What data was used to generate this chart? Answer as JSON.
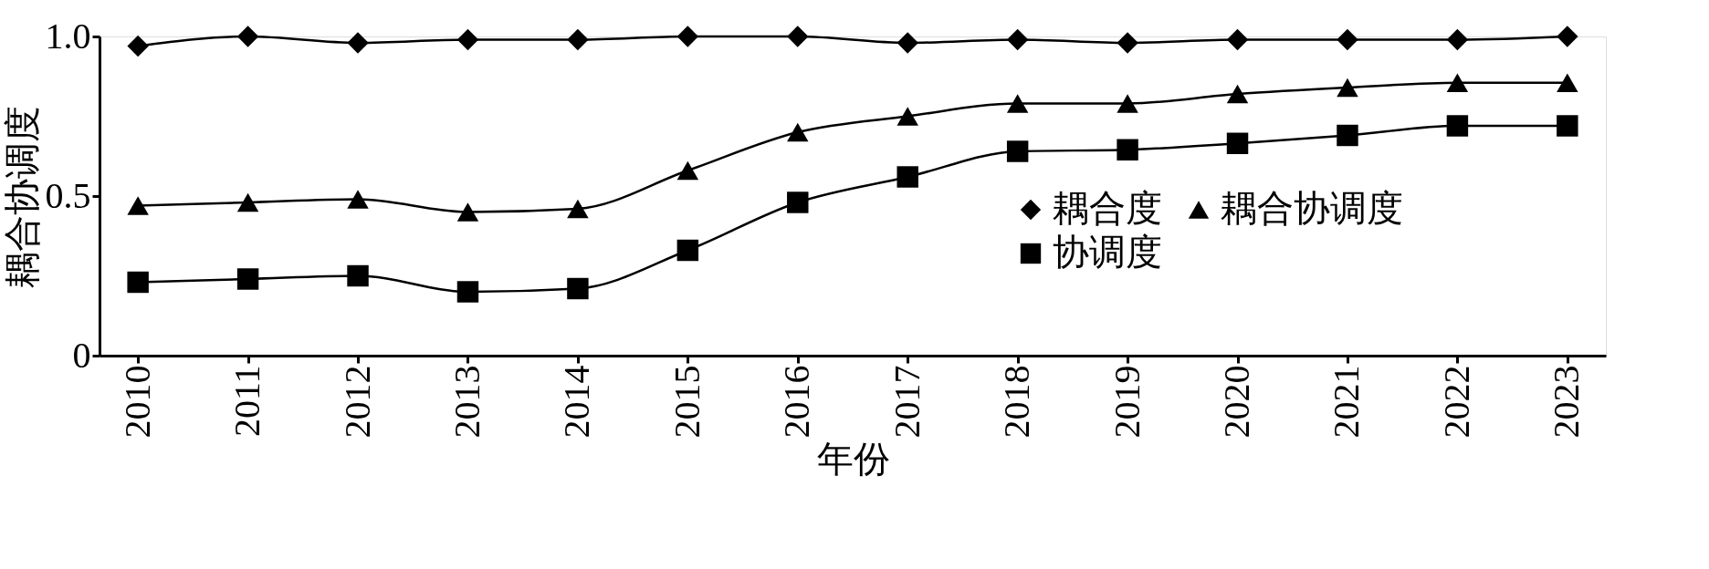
{
  "chart_data": {
    "type": "line",
    "xlabel": "年份",
    "ylabel": "耦合协调度",
    "categories": [
      "2010",
      "2011",
      "2012",
      "2013",
      "2014",
      "2015",
      "2016",
      "2017",
      "2018",
      "2019",
      "2020",
      "2021",
      "2022",
      "2023"
    ],
    "ylim": [
      0,
      1
    ],
    "yticks": [
      0,
      0.5,
      {
        "value": 1,
        "label": "1.0"
      }
    ],
    "grid": false,
    "legend": "right",
    "line_style": "solid",
    "series": [
      {
        "name": "耦合度",
        "color": "#000000",
        "marker": "diamond",
        "values": [
          0.97,
          1.0,
          0.98,
          0.99,
          0.99,
          1.0,
          1.0,
          0.98,
          0.99,
          0.98,
          0.99,
          0.99,
          0.99,
          1.0
        ]
      },
      {
        "name": "协调度",
        "color": "#000000",
        "marker": "square",
        "values": [
          0.23,
          0.24,
          0.25,
          0.2,
          0.21,
          0.33,
          0.48,
          0.56,
          0.64,
          0.645,
          0.665,
          0.69,
          0.72,
          0.72
        ]
      },
      {
        "name": "耦合协调度",
        "color": "#000000",
        "marker": "triangle",
        "values": [
          0.47,
          0.48,
          0.49,
          0.45,
          0.46,
          0.58,
          0.7,
          0.75,
          0.79,
          0.79,
          0.82,
          0.84,
          0.855,
          0.855
        ]
      }
    ]
  }
}
